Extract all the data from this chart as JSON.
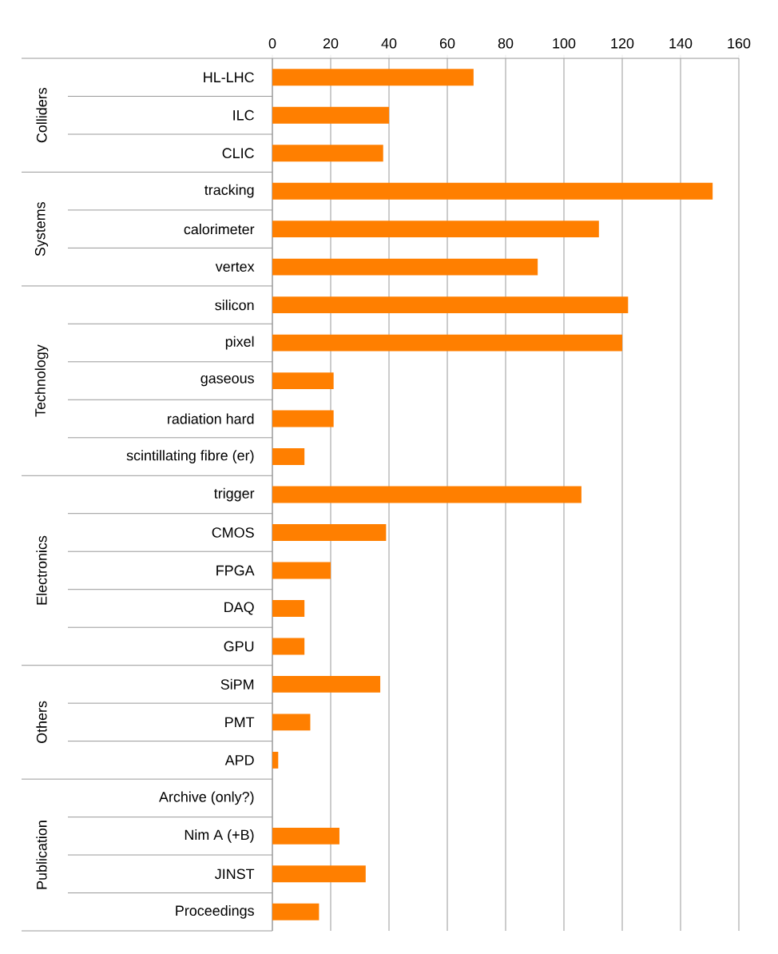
{
  "chart_data": {
    "type": "bar",
    "orientation": "horizontal",
    "categories": [
      "HL-LHC",
      "ILC",
      "CLIC",
      "tracking",
      "calorimeter",
      "vertex",
      "silicon",
      "pixel",
      "gaseous",
      "radiation hard",
      "scintillating fibre (er)",
      "trigger",
      "CMOS",
      "FPGA",
      "DAQ",
      "GPU",
      "SiPM",
      "PMT",
      "APD",
      "Archive (only?)",
      "Nim A (+B)",
      "JINST",
      "Proceedings"
    ],
    "values": [
      69,
      40,
      38,
      151,
      112,
      91,
      122,
      120,
      21,
      21,
      11,
      106,
      39,
      20,
      11,
      11,
      37,
      13,
      2,
      0,
      23,
      32,
      16
    ],
    "color": "#ff7f00",
    "xlim": [
      0,
      160
    ],
    "xticks": [
      0,
      20,
      40,
      60,
      80,
      100,
      120,
      140,
      160
    ],
    "grid": "x",
    "annotations": [
      "Colliders",
      "Systems",
      "Technology",
      "Electronics",
      "Others",
      "Publication"
    ]
  }
}
